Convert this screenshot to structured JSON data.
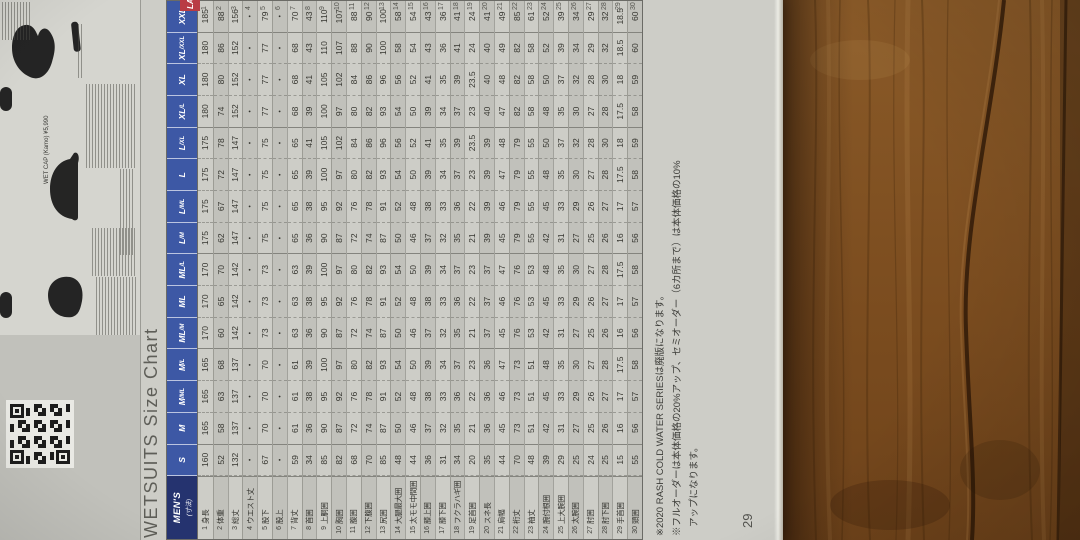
{
  "page": {
    "title": "WETSUITS Size Chart",
    "page_number": "29",
    "products": {
      "caption": "WET CAP (Kamo)  ¥5,990"
    },
    "side": {
      "ladys_label": "LADY'S"
    },
    "footnotes": [
      "※2020 RASH COLD WATER SERIESは廃版になります。",
      "※フルオーダーは本体価格の20%アップ、セミオーダー（6カ所まで）は本体価格の10%",
      "アップになります。"
    ],
    "table": {
      "corner": {
        "main": "MEN'S",
        "sub": "(寸法)"
      },
      "sizes": [
        {
          "main": "S",
          "sub": ""
        },
        {
          "main": "M",
          "sub": ""
        },
        {
          "main": "M",
          "sub": "/ML"
        },
        {
          "main": "M",
          "sub": "/L"
        },
        {
          "main": "ML",
          "sub": "/M"
        },
        {
          "main": "ML",
          "sub": ""
        },
        {
          "main": "ML",
          "sub": "/L"
        },
        {
          "main": "L",
          "sub": "/M"
        },
        {
          "main": "L",
          "sub": "/ML"
        },
        {
          "main": "L",
          "sub": ""
        },
        {
          "main": "L",
          "sub": "/XL"
        },
        {
          "main": "XL",
          "sub": "/L"
        },
        {
          "main": "XL",
          "sub": ""
        },
        {
          "main": "XL",
          "sub": "/XXL"
        },
        {
          "main": "XXL",
          "sub": ""
        }
      ],
      "group_starts": [
        1,
        4,
        7,
        11,
        14
      ],
      "rows": [
        {
          "no": 1,
          "label": "身長",
          "values": [
            "160",
            "165",
            "165",
            "165",
            "170",
            "170",
            "170",
            "175",
            "175",
            "175",
            "175",
            "180",
            "180",
            "180",
            "185"
          ]
        },
        {
          "no": 2,
          "label": "体重",
          "values": [
            "52",
            "58",
            "63",
            "68",
            "60",
            "65",
            "70",
            "62",
            "67",
            "72",
            "78",
            "74",
            "80",
            "86",
            "88"
          ]
        },
        {
          "no": 3,
          "label": "総丈",
          "values": [
            "132",
            "137",
            "137",
            "137",
            "142",
            "142",
            "142",
            "147",
            "147",
            "147",
            "147",
            "152",
            "152",
            "152",
            "156"
          ]
        },
        {
          "no": 4,
          "label": "ウエスト丈",
          "values": [
            "・",
            "・",
            "・",
            "・",
            "・",
            "・",
            "・",
            "・",
            "・",
            "・",
            "・",
            "・",
            "・",
            "・",
            "・"
          ]
        },
        {
          "no": 5,
          "label": "股下",
          "values": [
            "67",
            "70",
            "70",
            "70",
            "73",
            "73",
            "73",
            "75",
            "75",
            "75",
            "75",
            "77",
            "77",
            "77",
            "79"
          ]
        },
        {
          "no": 6,
          "label": "股上",
          "values": [
            "・",
            "・",
            "・",
            "・",
            "・",
            "・",
            "・",
            "・",
            "・",
            "・",
            "・",
            "・",
            "・",
            "・",
            "・"
          ]
        },
        {
          "no": 7,
          "label": "背丈",
          "values": [
            "59",
            "61",
            "61",
            "61",
            "63",
            "63",
            "63",
            "65",
            "65",
            "65",
            "65",
            "68",
            "68",
            "68",
            "70"
          ]
        },
        {
          "no": 8,
          "label": "首囲",
          "values": [
            "34",
            "36",
            "38",
            "39",
            "36",
            "38",
            "39",
            "36",
            "38",
            "39",
            "41",
            "39",
            "41",
            "43",
            "43"
          ]
        },
        {
          "no": 9,
          "label": "上胴囲",
          "values": [
            "85",
            "90",
            "95",
            "100",
            "90",
            "95",
            "100",
            "90",
            "95",
            "100",
            "105",
            "100",
            "105",
            "110",
            "110"
          ]
        },
        {
          "no": 10,
          "label": "胸囲",
          "values": [
            "82",
            "87",
            "92",
            "97",
            "87",
            "92",
            "97",
            "87",
            "92",
            "97",
            "102",
            "97",
            "102",
            "107",
            "107"
          ]
        },
        {
          "no": 11,
          "label": "腹囲",
          "values": [
            "68",
            "72",
            "76",
            "80",
            "72",
            "76",
            "80",
            "72",
            "76",
            "80",
            "84",
            "80",
            "84",
            "88",
            "88"
          ]
        },
        {
          "no": 12,
          "label": "下腹囲",
          "values": [
            "70",
            "74",
            "78",
            "82",
            "74",
            "78",
            "82",
            "74",
            "78",
            "82",
            "86",
            "82",
            "86",
            "90",
            "90"
          ]
        },
        {
          "no": 13,
          "label": "尻囲",
          "values": [
            "85",
            "87",
            "91",
            "93",
            "87",
            "91",
            "93",
            "87",
            "91",
            "93",
            "96",
            "93",
            "96",
            "100",
            "100"
          ]
        },
        {
          "no": 14,
          "label": "大腿最大囲",
          "values": [
            "48",
            "50",
            "52",
            "54",
            "50",
            "52",
            "54",
            "50",
            "52",
            "54",
            "56",
            "54",
            "56",
            "58",
            "58"
          ]
        },
        {
          "no": 15,
          "label": "太モモ中間囲",
          "values": [
            "44",
            "46",
            "48",
            "50",
            "46",
            "48",
            "50",
            "46",
            "48",
            "50",
            "52",
            "50",
            "52",
            "54",
            "54"
          ]
        },
        {
          "no": 16,
          "label": "膝上囲",
          "values": [
            "36",
            "37",
            "38",
            "39",
            "37",
            "38",
            "39",
            "37",
            "38",
            "39",
            "41",
            "39",
            "41",
            "43",
            "43"
          ]
        },
        {
          "no": 17,
          "label": "膝下囲",
          "values": [
            "31",
            "32",
            "33",
            "34",
            "32",
            "33",
            "34",
            "32",
            "33",
            "34",
            "35",
            "34",
            "35",
            "36",
            "36"
          ]
        },
        {
          "no": 18,
          "label": "フクラハギ囲",
          "values": [
            "34",
            "35",
            "36",
            "37",
            "35",
            "36",
            "37",
            "35",
            "36",
            "37",
            "39",
            "37",
            "39",
            "41",
            "41"
          ]
        },
        {
          "no": 19,
          "label": "足首囲",
          "values": [
            "20",
            "21",
            "22",
            "23",
            "21",
            "22",
            "23",
            "21",
            "22",
            "23",
            "23.5",
            "23",
            "23.5",
            "24",
            "24"
          ]
        },
        {
          "no": 20,
          "label": "スネ長",
          "values": [
            "35",
            "36",
            "36",
            "36",
            "37",
            "37",
            "37",
            "39",
            "39",
            "39",
            "39",
            "40",
            "40",
            "40",
            "41"
          ]
        },
        {
          "no": 21,
          "label": "肩幅",
          "values": [
            "44",
            "45",
            "46",
            "47",
            "45",
            "46",
            "47",
            "45",
            "46",
            "47",
            "48",
            "47",
            "48",
            "49",
            "49"
          ]
        },
        {
          "no": 22,
          "label": "裄丈",
          "values": [
            "70",
            "73",
            "73",
            "73",
            "76",
            "76",
            "76",
            "79",
            "79",
            "79",
            "79",
            "82",
            "82",
            "82",
            "85"
          ]
        },
        {
          "no": 23,
          "label": "袖丈",
          "values": [
            "48",
            "51",
            "51",
            "51",
            "53",
            "53",
            "53",
            "55",
            "55",
            "55",
            "55",
            "58",
            "58",
            "58",
            "61"
          ]
        },
        {
          "no": 24,
          "label": "腕付根囲",
          "values": [
            "39",
            "42",
            "45",
            "48",
            "42",
            "45",
            "48",
            "42",
            "45",
            "48",
            "50",
            "48",
            "50",
            "52",
            "52"
          ]
        },
        {
          "no": 25,
          "label": "上大腕囲",
          "values": [
            "29",
            "31",
            "33",
            "35",
            "31",
            "33",
            "35",
            "31",
            "33",
            "35",
            "37",
            "35",
            "37",
            "39",
            "39"
          ]
        },
        {
          "no": 26,
          "label": "太腕囲",
          "values": [
            "25",
            "27",
            "29",
            "30",
            "27",
            "29",
            "30",
            "27",
            "29",
            "30",
            "32",
            "30",
            "32",
            "34",
            "34"
          ]
        },
        {
          "no": 27,
          "label": "肘囲",
          "values": [
            "24",
            "25",
            "26",
            "27",
            "25",
            "26",
            "27",
            "25",
            "26",
            "27",
            "28",
            "27",
            "28",
            "29",
            "29"
          ]
        },
        {
          "no": 28,
          "label": "肘下囲",
          "values": [
            "25",
            "26",
            "27",
            "28",
            "26",
            "27",
            "28",
            "26",
            "27",
            "28",
            "30",
            "28",
            "30",
            "32",
            "32"
          ]
        },
        {
          "no": 29,
          "label": "手首囲",
          "values": [
            "15",
            "16",
            "17",
            "17.5",
            "16",
            "17",
            "17.5",
            "16",
            "17",
            "17.5",
            "18",
            "17.5",
            "18",
            "18.5",
            "18.5"
          ]
        },
        {
          "no": 30,
          "label": "頭囲",
          "values": [
            "55",
            "56",
            "57",
            "58",
            "56",
            "57",
            "58",
            "56",
            "57",
            "58",
            "59",
            "58",
            "59",
            "60",
            "60"
          ]
        }
      ]
    },
    "colors": {
      "header_blue": "#3d58a5",
      "corner_navy": "#25336f",
      "ladys_red": "#b93c44",
      "paper": "#cdcdc7",
      "row_shade": "#c1c1bb",
      "wood": "#7d4e20"
    }
  }
}
